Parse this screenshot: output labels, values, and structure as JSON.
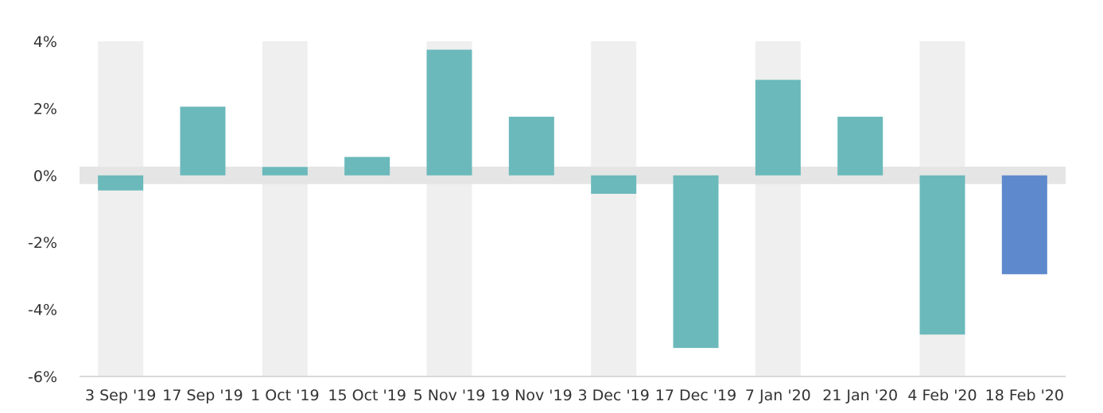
{
  "chart_data": {
    "type": "bar",
    "categories": [
      "3 Sep '19",
      "17 Sep '19",
      "1 Oct '19",
      "15 Oct '19",
      "5 Nov '19",
      "19 Nov '19",
      "3 Dec '19",
      "17 Dec '19",
      "7 Jan '20",
      "21 Jan '20",
      "4 Feb '20",
      "18 Feb '20"
    ],
    "values": [
      -0.45,
      2.05,
      0.25,
      0.55,
      3.75,
      1.75,
      -0.55,
      -5.15,
      2.85,
      1.75,
      -4.75,
      -2.95
    ],
    "y_ticks": [
      4,
      2,
      0,
      -2,
      -4,
      -6
    ],
    "y_tick_labels": [
      "4%",
      "2%",
      "0%",
      "-2%",
      "-4%",
      "-6%"
    ],
    "ylim": [
      -6,
      4
    ],
    "title": "",
    "xlabel": "",
    "ylabel": "",
    "grid": "alternating vertical bands",
    "legend": "none",
    "colors": {
      "bar": "#6bb9bb",
      "highlight_bar": "#5e89cc",
      "band": "#efefef",
      "zero_band": "#e5e5e5",
      "axis": "#d9d9d9",
      "text": "#333333"
    },
    "highlight_index": 11
  }
}
